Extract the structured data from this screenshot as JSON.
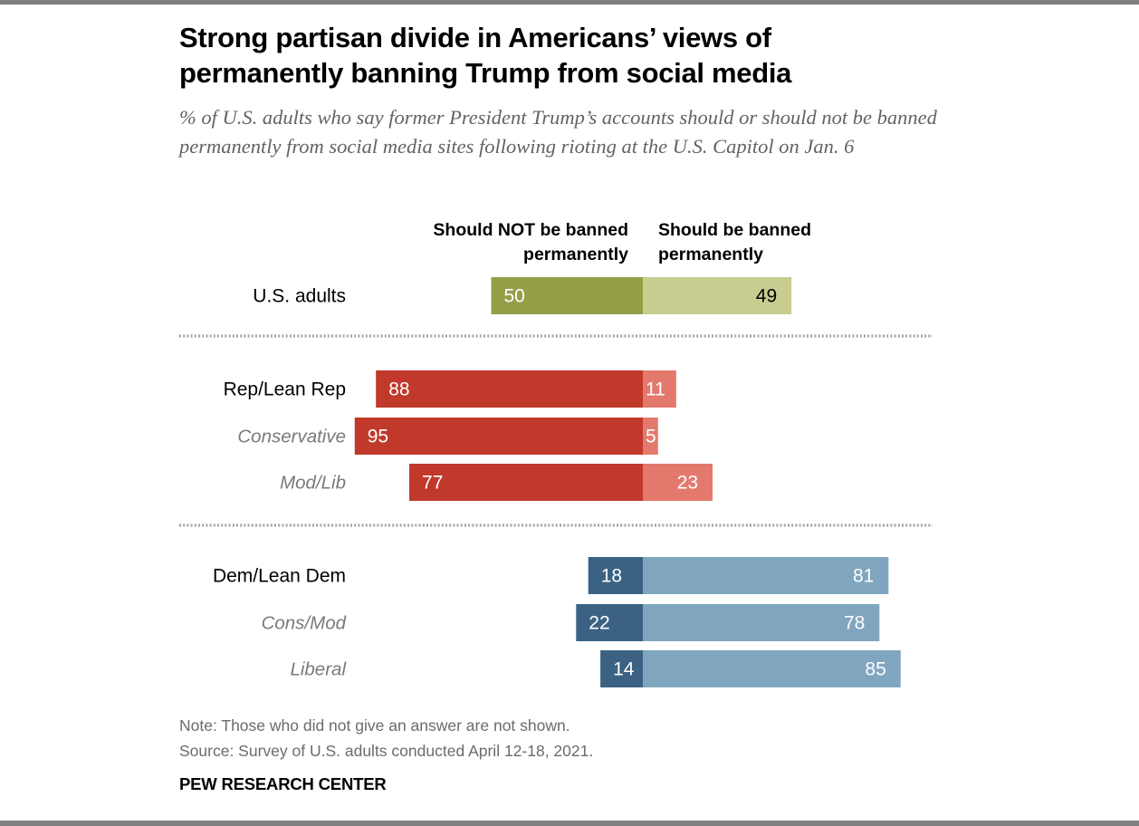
{
  "title": "Strong partisan divide in Americans’ views of permanently banning Trump from social media",
  "subtitle": "% of U.S. adults who say former President Trump’s accounts should or should not be banned permanently from social media sites following rioting at the U.S. Capitol on Jan. 6",
  "note": "Note: Those who did not give an answer are not shown.",
  "source": "Source: Survey of U.S. adults conducted April 12-18, 2021.",
  "brand": "PEW RESEARCH CENTER",
  "colors": {
    "adults_not": "#949f48",
    "adults_ban": "#c8cc8f",
    "rep_not": "#c0392b",
    "rep_ban": "#e3796d",
    "dem_not": "#3b6283",
    "dem_ban": "#80a6bf",
    "sub_label": "#7a7a7a",
    "divider": "#a0a0a0"
  },
  "chart_data": {
    "type": "bar",
    "orientation": "horizontal-diverging",
    "series": [
      {
        "name": "Should NOT be banned permanently"
      },
      {
        "name": "Should be banned permanently"
      }
    ],
    "groups": [
      {
        "name": "adults",
        "rows": [
          {
            "label": "U.S. adults",
            "sub": false,
            "not_banned": 50,
            "banned": 49
          }
        ]
      },
      {
        "name": "rep",
        "rows": [
          {
            "label": "Rep/Lean Rep",
            "sub": false,
            "not_banned": 88,
            "banned": 11
          },
          {
            "label": "Conservative",
            "sub": true,
            "not_banned": 95,
            "banned": 5
          },
          {
            "label": "Mod/Lib",
            "sub": true,
            "not_banned": 77,
            "banned": 23
          }
        ]
      },
      {
        "name": "dem",
        "rows": [
          {
            "label": "Dem/Lean Dem",
            "sub": false,
            "not_banned": 18,
            "banned": 81
          },
          {
            "label": "Cons/Mod",
            "sub": true,
            "not_banned": 22,
            "banned": 78
          },
          {
            "label": "Liberal",
            "sub": true,
            "not_banned": 14,
            "banned": 85
          }
        ]
      }
    ]
  }
}
